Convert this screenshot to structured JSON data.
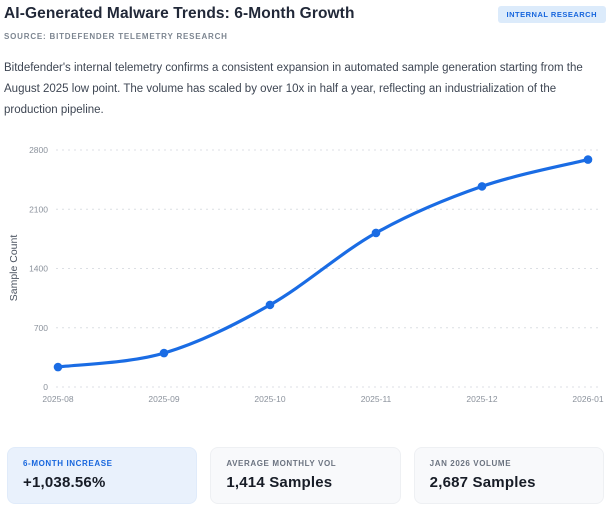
{
  "header": {
    "title": "AI-Generated Malware Trends: 6-Month Growth",
    "source": "SOURCE: BITDEFENDER TELEMETRY RESEARCH",
    "badge": "INTERNAL RESEARCH"
  },
  "description": "Bitdefender's internal telemetry confirms a consistent expansion in automated sample generation starting from the August 2025 low point. The volume has scaled by over 10x in half a year, reflecting an industrialization of the production pipeline.",
  "chart_data": {
    "type": "line",
    "x": [
      "2025-08",
      "2025-09",
      "2025-10",
      "2025-11",
      "2025-12",
      "2026-01"
    ],
    "values": [
      236,
      401,
      970,
      1820,
      2370,
      2687
    ],
    "title": "",
    "xlabel": "",
    "ylabel": "Sample Count",
    "yticks": [
      0,
      700,
      1400,
      2100,
      2800
    ],
    "ylim": [
      0,
      2800
    ],
    "grid": "horizontal-dashed",
    "legend": "none",
    "line_color": "#1a6ce4",
    "marker_color": "#1a6ce4",
    "grid_color": "#dcdfe4",
    "tick_label_color": "#8b929c",
    "axis_title_color": "#4d5562"
  },
  "stats": [
    {
      "label": "6-MONTH INCREASE",
      "value": "+1,038.56%"
    },
    {
      "label": "AVERAGE MONTHLY VOL",
      "value": "1,414 Samples"
    },
    {
      "label": "JAN 2026 VOLUME",
      "value": "2,687 Samples"
    }
  ],
  "colors": {
    "accent": "#1a6ce4",
    "badge_bg": "#dcebfb",
    "badge_text": "#1766dd",
    "highlight_card_bg": "#e9f1fc",
    "card_bg": "#f8f9fb",
    "title_text": "#212838",
    "body_text": "#3e4653",
    "muted_text": "#7d8691"
  }
}
